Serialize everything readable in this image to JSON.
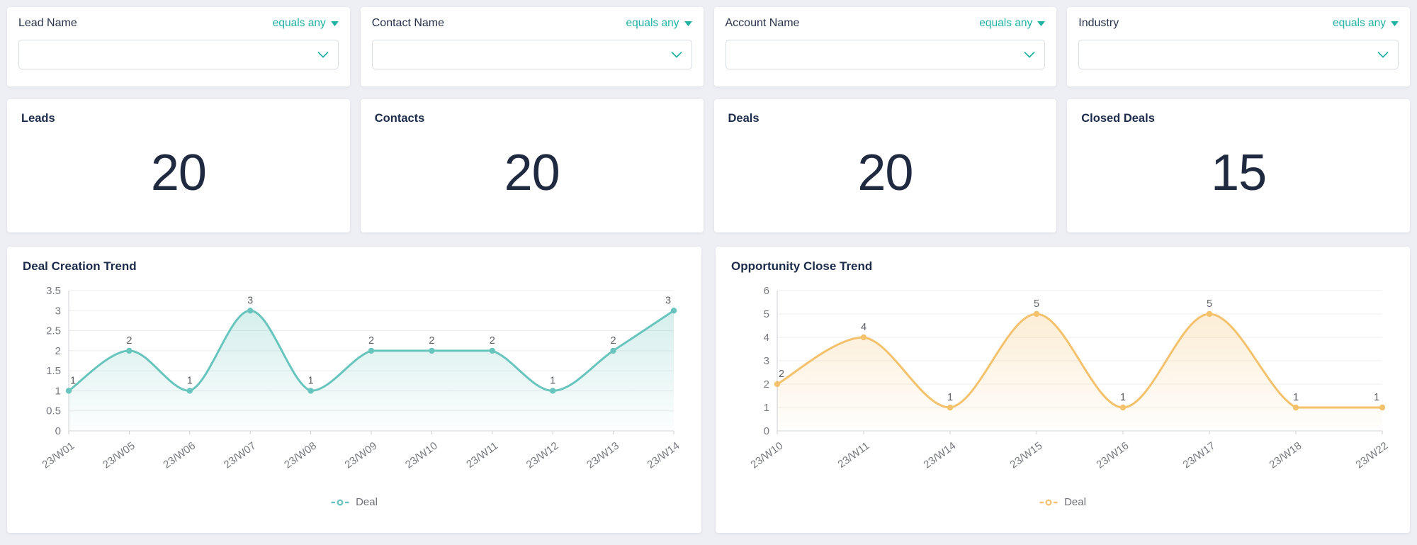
{
  "theme": {
    "accent": "#1fb2a3",
    "page_bg": "#edeff4",
    "card_bg": "#ffffff",
    "title_color": "#1c2b4a",
    "kpi_value_color": "#1f2940",
    "axis_label_color": "#76797f",
    "data_label_color": "#5b5e63"
  },
  "filters": [
    {
      "label": "Lead Name",
      "operator": "equals any",
      "value": ""
    },
    {
      "label": "Contact Name",
      "operator": "equals any",
      "value": ""
    },
    {
      "label": "Account Name",
      "operator": "equals any",
      "value": ""
    },
    {
      "label": "Industry",
      "operator": "equals any",
      "value": ""
    }
  ],
  "kpis": [
    {
      "title": "Leads",
      "value": "20"
    },
    {
      "title": "Contacts",
      "value": "20"
    },
    {
      "title": "Deals",
      "value": "20"
    },
    {
      "title": "Closed Deals",
      "value": "15"
    }
  ],
  "chart_data": [
    {
      "type": "line",
      "title": "Deal Creation Trend",
      "categories": [
        "23/W01",
        "23/W05",
        "23/W06",
        "23/W07",
        "23/W08",
        "23/W09",
        "23/W10",
        "23/W11",
        "23/W12",
        "23/W13",
        "23/W14"
      ],
      "series": [
        {
          "name": "Deal",
          "values": [
            1,
            2,
            1,
            3,
            1,
            2,
            2,
            2,
            1,
            2,
            3
          ]
        }
      ],
      "ylim": [
        0,
        3.5
      ],
      "yticks": [
        0,
        0.5,
        1,
        1.5,
        2,
        2.5,
        3,
        3.5
      ],
      "color": "#68c5bd",
      "smooth": true,
      "area": true,
      "grid": true,
      "data_labels": true,
      "legend_position": "bottom"
    },
    {
      "type": "line",
      "title": "Opportunity Close Trend",
      "categories": [
        "23/W10",
        "23/W11",
        "23/W14",
        "23/W15",
        "23/W16",
        "23/W17",
        "23/W18",
        "23/W22"
      ],
      "series": [
        {
          "name": "Deal",
          "values": [
            2,
            4,
            1,
            5,
            1,
            5,
            1,
            1
          ]
        }
      ],
      "ylim": [
        0,
        6
      ],
      "yticks": [
        0,
        1,
        2,
        3,
        4,
        5,
        6
      ],
      "color": "#f4c16c",
      "smooth": true,
      "area": true,
      "grid": true,
      "data_labels": true,
      "legend_position": "bottom"
    }
  ]
}
